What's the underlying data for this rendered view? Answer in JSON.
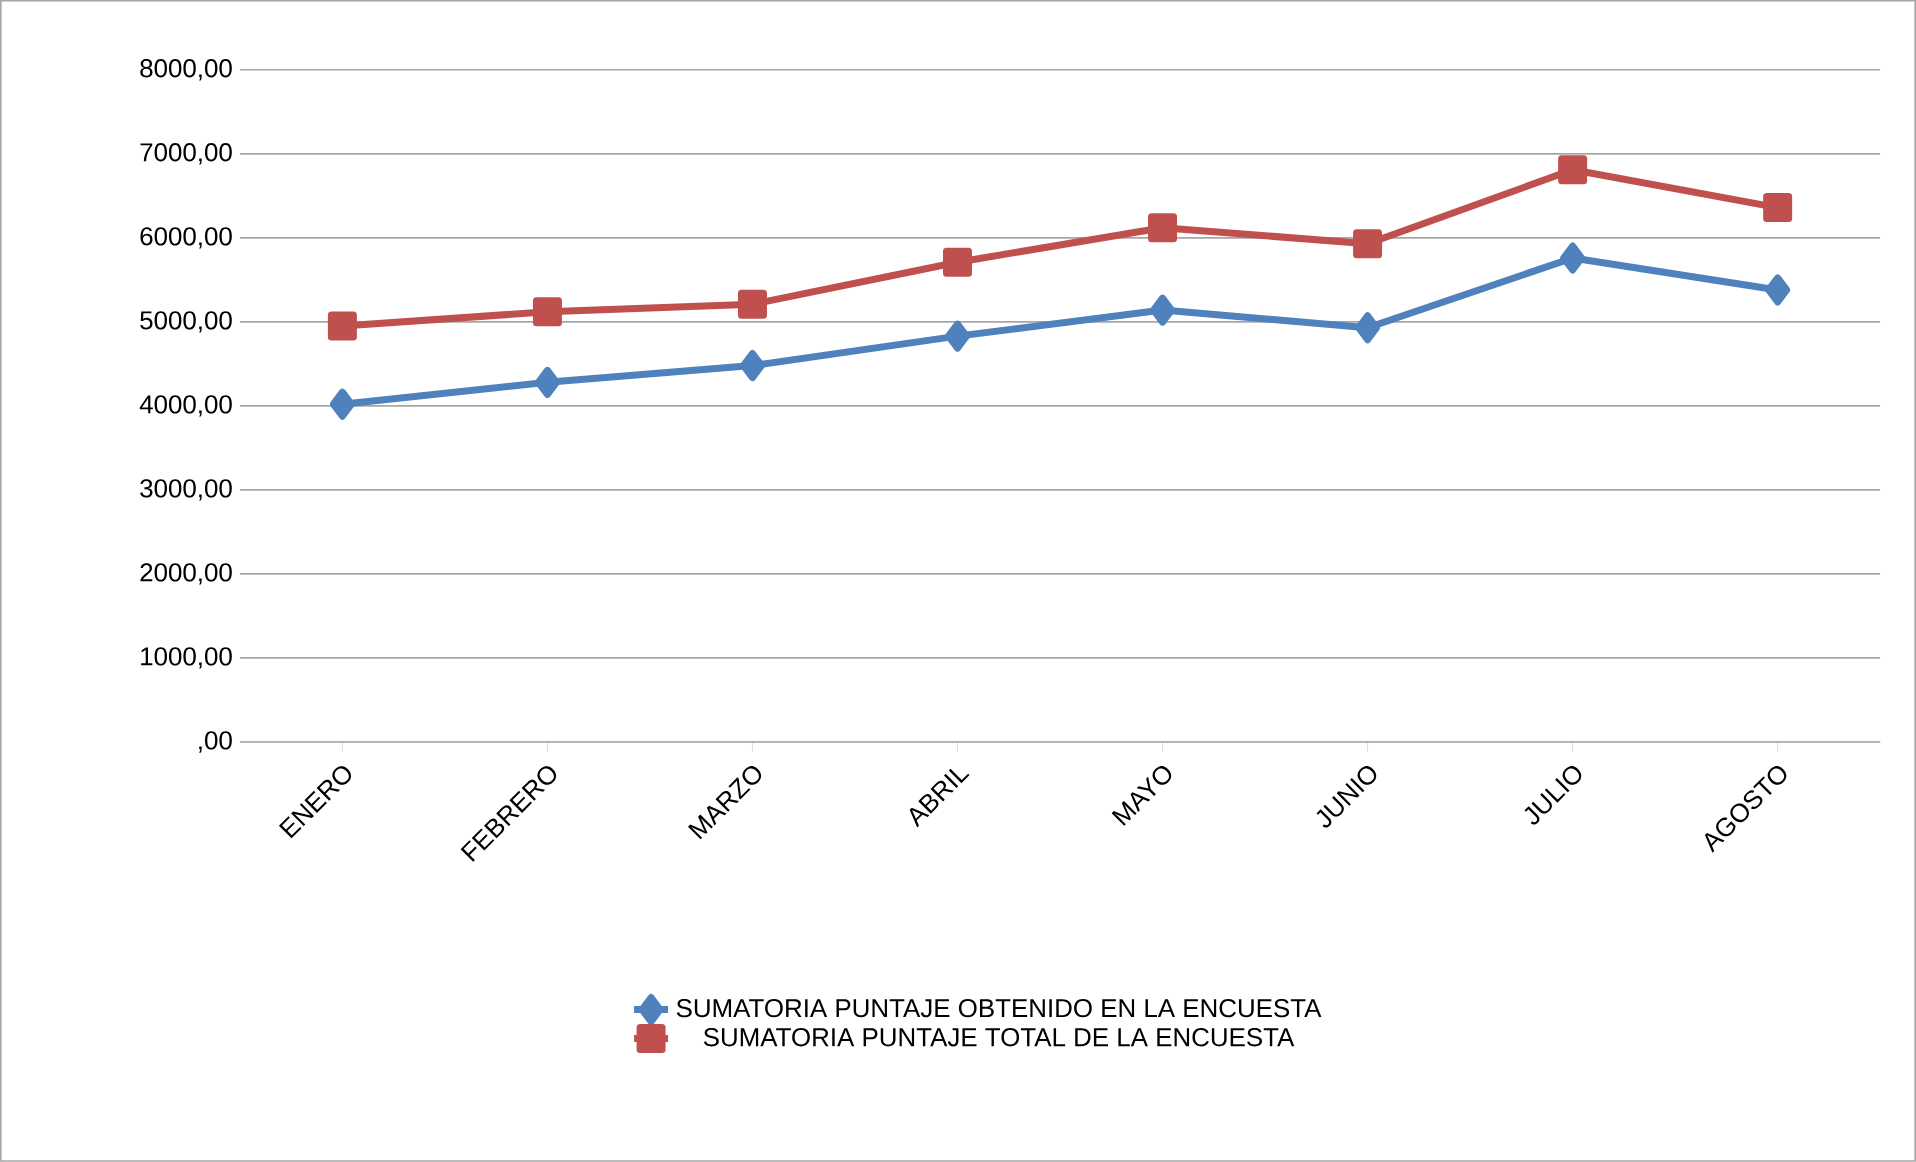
{
  "chart_data": {
    "type": "line",
    "categories": [
      "ENERO",
      "FEBRERO",
      "MARZO",
      "ABRIL",
      "MAYO",
      "JUNIO",
      "JULIO",
      "AGOSTO"
    ],
    "series": [
      {
        "name": "SUMATORIA PUNTAJE OBTENIDO EN LA ENCUESTA",
        "color": "#4f81bd",
        "marker": "diamond",
        "values": [
          4020,
          4280,
          4480,
          4830,
          5140,
          4930,
          5760,
          5380
        ]
      },
      {
        "name": "SUMATORIA PUNTAJE TOTAL DE LA ENCUESTA",
        "color": "#c0504d",
        "marker": "square",
        "values": [
          4950,
          5120,
          5210,
          5710,
          6120,
          5930,
          6810,
          6360
        ]
      }
    ],
    "ylim": [
      0,
      8000
    ],
    "yticks": [
      {
        "value": 0,
        "label": ",00"
      },
      {
        "value": 1000,
        "label": "1000,00"
      },
      {
        "value": 2000,
        "label": "2000,00"
      },
      {
        "value": 3000,
        "label": "3000,00"
      },
      {
        "value": 4000,
        "label": "4000,00"
      },
      {
        "value": 5000,
        "label": "5000,00"
      },
      {
        "value": 6000,
        "label": "6000,00"
      },
      {
        "value": 7000,
        "label": "7000,00"
      },
      {
        "value": 8000,
        "label": "8000,00"
      }
    ],
    "grid": "y",
    "legend": "bottom",
    "line_style": "solid"
  }
}
